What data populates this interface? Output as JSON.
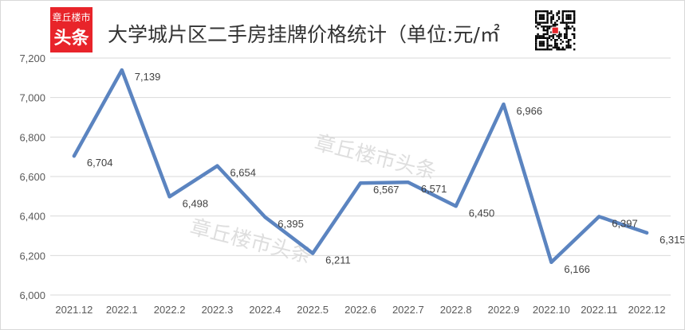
{
  "header": {
    "title": "大学城片区二手房挂牌价格统计（单位:元/㎡",
    "logo_line1": "章丘楼市",
    "logo_line2": "头条",
    "watermark": "章丘楼市头条",
    "colors": {
      "logo_bg": "#e8242a",
      "line": "#5b84c0"
    }
  },
  "chart_data": {
    "type": "line",
    "title": "大学城片区二手房挂牌价格统计（单位:元/㎡",
    "xlabel": "",
    "ylabel": "",
    "categories": [
      "2021.12",
      "2022.1",
      "2022.2",
      "2022.3",
      "2022.4",
      "2022.5",
      "2022.6",
      "2022.7",
      "2022.8",
      "2022.9",
      "2022.10",
      "2022.11",
      "2022.12"
    ],
    "series": [
      {
        "values": [
          6704,
          7139,
          6498,
          6654,
          6395,
          6211,
          6567,
          6571,
          6450,
          6966,
          6166,
          6397,
          6315
        ]
      }
    ],
    "ylim": [
      6000,
      7200
    ],
    "yticks": [
      6000,
      6200,
      6400,
      6600,
      6800,
      7000,
      7200
    ],
    "ytick_labels": [
      "6,000",
      "6,200",
      "6,400",
      "6,600",
      "6,800",
      "7,000",
      "7,200"
    ],
    "data_labels": [
      "6,704",
      "7,139",
      "6,498",
      "6,654",
      "6,395",
      "6,211",
      "6,567",
      "6,571",
      "6,450",
      "6,966",
      "6,166",
      "6,397",
      "6,315"
    ],
    "grid": true,
    "legend": "none"
  }
}
